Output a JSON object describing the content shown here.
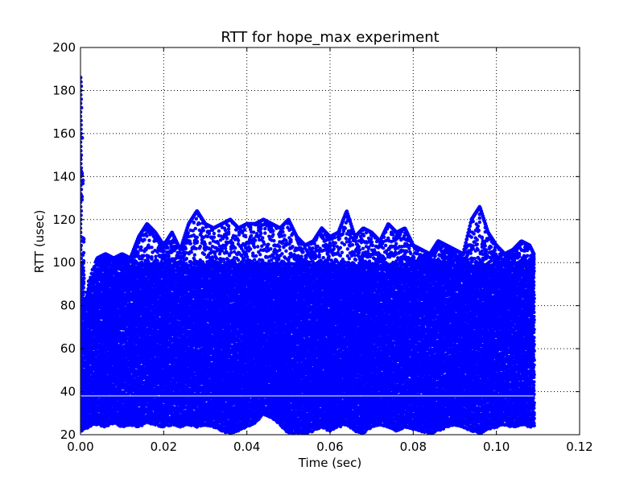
{
  "chart_data": {
    "type": "scatter",
    "title": "RTT for hope_max experiment",
    "xlabel": "Time (sec)",
    "ylabel": "RTT (usec)",
    "xlim": [
      0.0,
      0.12
    ],
    "ylim": [
      20,
      200
    ],
    "x_ticks": [
      "0.00",
      "0.02",
      "0.04",
      "0.06",
      "0.08",
      "0.10",
      "0.12"
    ],
    "y_ticks": [
      "20",
      "40",
      "60",
      "80",
      "100",
      "120",
      "140",
      "160",
      "180",
      "200"
    ],
    "grid": true,
    "legend": "none",
    "marker_color": "#0000ff",
    "series": [
      {
        "x_range": [
          0.0,
          0.109
        ],
        "baseline_rtt": 38,
        "upper_envelope": [
          [
            0.0,
            186
          ],
          [
            0.0005,
            150
          ],
          [
            0.001,
            80
          ],
          [
            0.002,
            92
          ],
          [
            0.004,
            102
          ],
          [
            0.006,
            104
          ],
          [
            0.008,
            102
          ],
          [
            0.01,
            104
          ],
          [
            0.012,
            102
          ],
          [
            0.014,
            112
          ],
          [
            0.016,
            118
          ],
          [
            0.018,
            114
          ],
          [
            0.02,
            108
          ],
          [
            0.022,
            114
          ],
          [
            0.024,
            106
          ],
          [
            0.026,
            118
          ],
          [
            0.028,
            124
          ],
          [
            0.03,
            118
          ],
          [
            0.032,
            116
          ],
          [
            0.034,
            118
          ],
          [
            0.036,
            120
          ],
          [
            0.038,
            116
          ],
          [
            0.04,
            118
          ],
          [
            0.042,
            118
          ],
          [
            0.044,
            120
          ],
          [
            0.046,
            118
          ],
          [
            0.048,
            116
          ],
          [
            0.05,
            120
          ],
          [
            0.052,
            112
          ],
          [
            0.054,
            108
          ],
          [
            0.056,
            110
          ],
          [
            0.058,
            116
          ],
          [
            0.06,
            112
          ],
          [
            0.062,
            114
          ],
          [
            0.064,
            124
          ],
          [
            0.066,
            112
          ],
          [
            0.068,
            116
          ],
          [
            0.07,
            114
          ],
          [
            0.072,
            110
          ],
          [
            0.074,
            118
          ],
          [
            0.076,
            114
          ],
          [
            0.078,
            116
          ],
          [
            0.08,
            108
          ],
          [
            0.082,
            106
          ],
          [
            0.084,
            104
          ],
          [
            0.086,
            110
          ],
          [
            0.088,
            108
          ],
          [
            0.09,
            106
          ],
          [
            0.092,
            104
          ],
          [
            0.094,
            120
          ],
          [
            0.096,
            126
          ],
          [
            0.098,
            114
          ],
          [
            0.1,
            108
          ],
          [
            0.102,
            104
          ],
          [
            0.104,
            106
          ],
          [
            0.106,
            110
          ],
          [
            0.108,
            108
          ],
          [
            0.109,
            104
          ]
        ],
        "lower_envelope": [
          [
            0.0,
            22
          ],
          [
            0.002,
            24
          ],
          [
            0.004,
            25
          ],
          [
            0.006,
            24
          ],
          [
            0.008,
            26
          ],
          [
            0.01,
            24
          ],
          [
            0.012,
            25
          ],
          [
            0.014,
            24
          ],
          [
            0.016,
            26
          ],
          [
            0.018,
            25
          ],
          [
            0.02,
            24
          ],
          [
            0.022,
            25
          ],
          [
            0.024,
            24
          ],
          [
            0.026,
            25
          ],
          [
            0.028,
            24
          ],
          [
            0.03,
            25
          ],
          [
            0.032,
            24
          ],
          [
            0.034,
            22
          ],
          [
            0.036,
            21
          ],
          [
            0.038,
            22
          ],
          [
            0.04,
            24
          ],
          [
            0.042,
            26
          ],
          [
            0.044,
            30
          ],
          [
            0.046,
            28
          ],
          [
            0.048,
            25
          ],
          [
            0.05,
            21
          ],
          [
            0.052,
            21
          ],
          [
            0.054,
            21
          ],
          [
            0.056,
            22
          ],
          [
            0.058,
            24
          ],
          [
            0.06,
            22
          ],
          [
            0.062,
            24
          ],
          [
            0.064,
            25
          ],
          [
            0.066,
            22
          ],
          [
            0.068,
            21
          ],
          [
            0.07,
            24
          ],
          [
            0.072,
            25
          ],
          [
            0.074,
            24
          ],
          [
            0.076,
            22
          ],
          [
            0.078,
            24
          ],
          [
            0.08,
            23
          ],
          [
            0.082,
            22
          ],
          [
            0.084,
            21
          ],
          [
            0.086,
            22
          ],
          [
            0.088,
            24
          ],
          [
            0.09,
            25
          ],
          [
            0.092,
            24
          ],
          [
            0.094,
            22
          ],
          [
            0.096,
            21
          ],
          [
            0.098,
            23
          ],
          [
            0.1,
            24
          ],
          [
            0.102,
            25
          ],
          [
            0.104,
            24
          ],
          [
            0.106,
            25
          ],
          [
            0.108,
            24
          ],
          [
            0.109,
            24
          ]
        ]
      }
    ]
  }
}
